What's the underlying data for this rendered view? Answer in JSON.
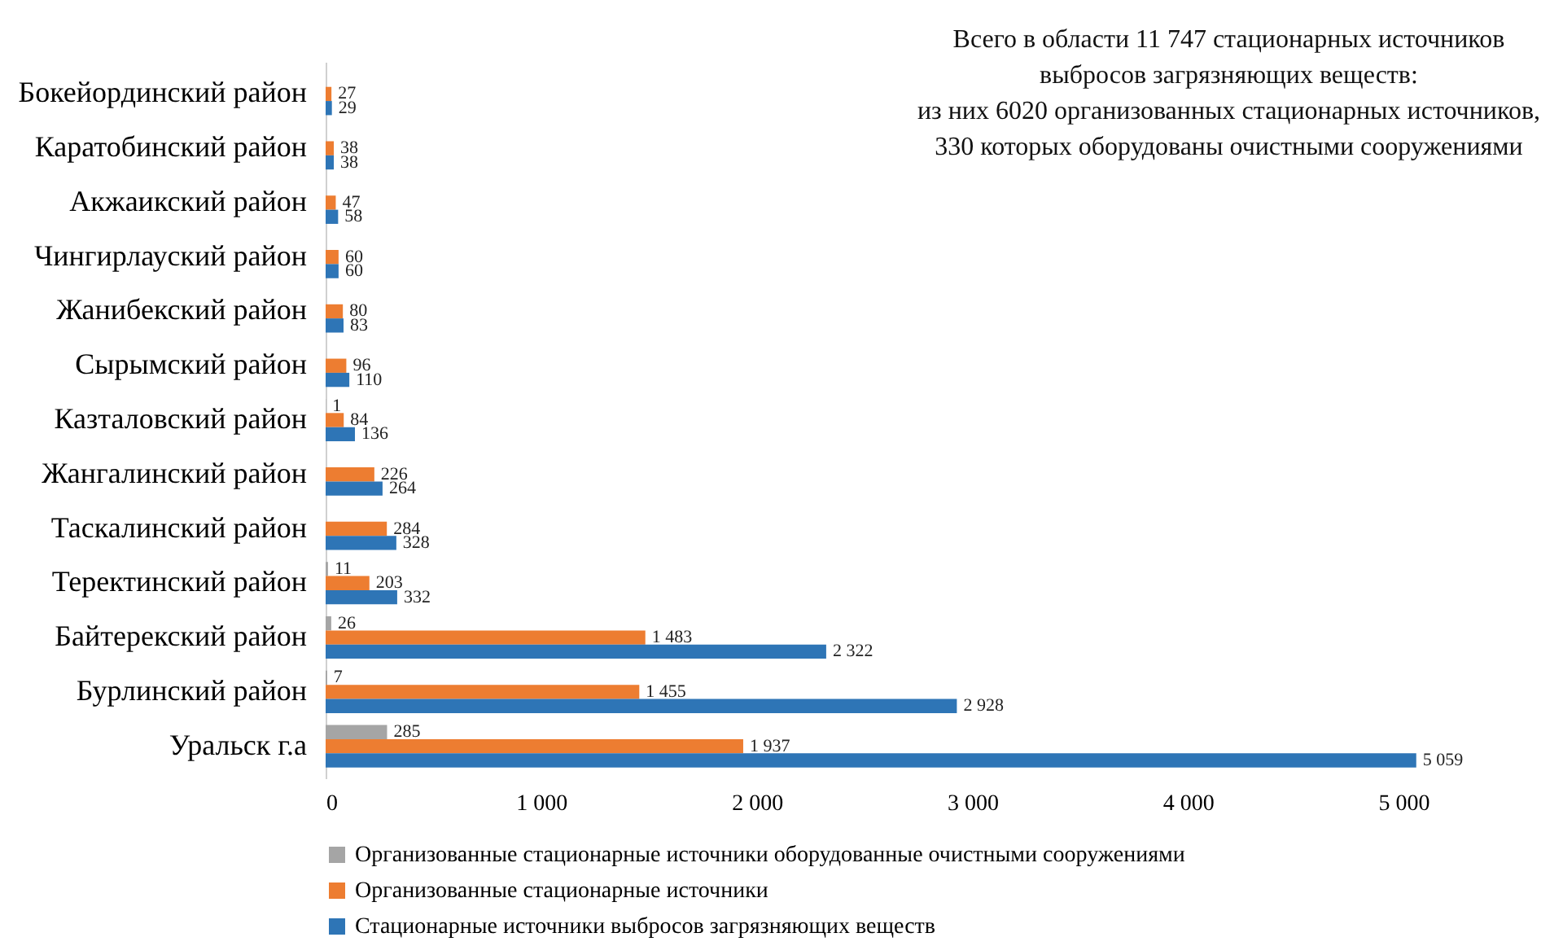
{
  "chart_data": {
    "type": "bar",
    "orientation": "horizontal",
    "categories": [
      "Бокейординский район",
      "Каратобинский район",
      "Акжаикский район",
      "Чингирлауский район",
      "Жанибекский район",
      "Сырымский район",
      "Казталовский район",
      "Жангалинский район",
      "Таскалинский район",
      "Теректинский район",
      "Байтерекский район",
      "Бурлинский район",
      "Уральск г.а"
    ],
    "series": [
      {
        "name": "Организованные стационарные источники оборудованные очистными сооружениями",
        "color": "#a5a5a5",
        "values": [
          null,
          null,
          null,
          null,
          null,
          null,
          1,
          null,
          null,
          11,
          26,
          7,
          285
        ]
      },
      {
        "name": "Организованные стационарные источники",
        "color": "#ed7d31",
        "values": [
          27,
          38,
          47,
          60,
          80,
          96,
          84,
          226,
          284,
          203,
          1483,
          1455,
          1937
        ]
      },
      {
        "name": "Стационарные источники выбросов загрязняющих веществ",
        "color": "#2e75b6",
        "values": [
          29,
          38,
          58,
          60,
          83,
          110,
          136,
          264,
          328,
          332,
          2322,
          2928,
          5059
        ]
      }
    ],
    "xlim": [
      0,
      5060
    ],
    "xticks": [
      {
        "value": 0,
        "label": "0"
      },
      {
        "value": 1000,
        "label": "1 000"
      },
      {
        "value": 2000,
        "label": "2 000"
      },
      {
        "value": 3000,
        "label": "3 000"
      },
      {
        "value": 4000,
        "label": "4 000"
      },
      {
        "value": 5000,
        "label": "5 000"
      }
    ],
    "data_labels": true,
    "legend": "bottom",
    "grid": false,
    "annotations": [
      "Всего в области 11 747 стационарных источников",
      "выбросов загрязняющих веществ:",
      "из них 6020 организованных стационарных источников,",
      "330 которых оборудованы очистными сооружениями"
    ]
  }
}
